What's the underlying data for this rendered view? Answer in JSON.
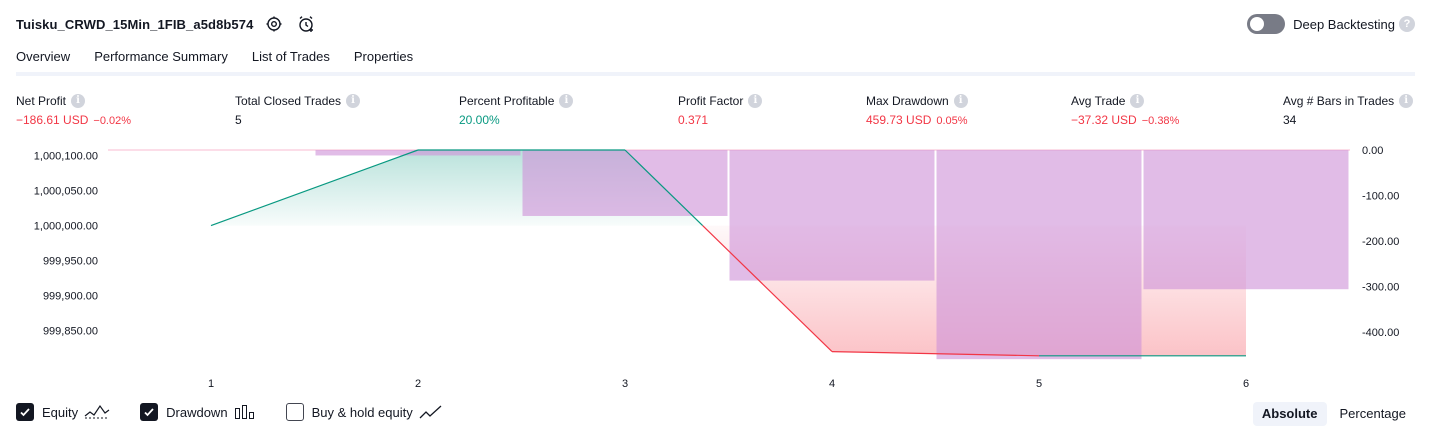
{
  "header": {
    "title": "Tuisku_CRWD_15Min_1FIB_a5d8b574",
    "settings_icon": "gear-icon",
    "alert_icon": "alarm-add-icon"
  },
  "deep_backtesting": {
    "label": "Deep Backtesting",
    "enabled": false,
    "help": "?"
  },
  "tabs": [
    {
      "label": "Overview",
      "active": true
    },
    {
      "label": "Performance Summary",
      "active": false
    },
    {
      "label": "List of Trades",
      "active": false
    },
    {
      "label": "Properties",
      "active": false
    }
  ],
  "metrics": [
    {
      "label": "Net Profit",
      "value": "−186.61 USD",
      "sub": "−0.02%",
      "tone": "neg"
    },
    {
      "label": "Total Closed Trades",
      "value": "5",
      "sub": "",
      "tone": "neu"
    },
    {
      "label": "Percent Profitable",
      "value": "20.00%",
      "sub": "",
      "tone": "pos"
    },
    {
      "label": "Profit Factor",
      "value": "0.371",
      "sub": "",
      "tone": "neg"
    },
    {
      "label": "Max Drawdown",
      "value": "459.73 USD",
      "sub": "0.05%",
      "tone": "neg"
    },
    {
      "label": "Avg Trade",
      "value": "−37.32 USD",
      "sub": "−0.38%",
      "tone": "neg"
    },
    {
      "label": "Avg # Bars in Trades",
      "value": "34",
      "sub": "",
      "tone": "neu"
    }
  ],
  "colors": {
    "equity_up": "#089981",
    "equity_down": "#f23645",
    "drawdown": "#ce93d8",
    "text": "#131722"
  },
  "chart_data": {
    "type": "area",
    "x": [
      1,
      2,
      3,
      4,
      5,
      6
    ],
    "left_axis": {
      "ticks": [
        "1,000,100.00",
        "1,000,050.00",
        "1,000,000.00",
        "999,950.00",
        "999,900.00",
        "999,850.00"
      ],
      "tick_values": [
        1000100,
        1000050,
        1000000,
        999950,
        999900,
        999850
      ],
      "range": [
        999814,
        1000108
      ]
    },
    "right_axis": {
      "ticks": [
        "0.00",
        "-100.00",
        "-200.00",
        "-300.00",
        "-400.00"
      ],
      "tick_values": [
        0,
        -100,
        -200,
        -300,
        -400
      ],
      "range": [
        -459.73,
        0
      ]
    },
    "series": [
      {
        "name": "Equity",
        "kind": "line",
        "values": [
          1000000,
          1000108,
          1000108,
          999820,
          999814,
          999814
        ]
      },
      {
        "name": "Drawdown",
        "kind": "bar",
        "values": [
          0,
          -12,
          -145,
          -287,
          -459.73,
          -306
        ]
      }
    ],
    "series_legend": [
      {
        "name": "Equity",
        "checked": true,
        "icon": "equity-line-icon"
      },
      {
        "name": "Drawdown",
        "checked": true,
        "icon": "drawdown-bars-icon"
      },
      {
        "name": "Buy & hold equity",
        "checked": false,
        "icon": "buy-hold-line-icon"
      }
    ],
    "mode_options": [
      {
        "label": "Absolute",
        "active": true
      },
      {
        "label": "Percentage",
        "active": false
      }
    ]
  }
}
